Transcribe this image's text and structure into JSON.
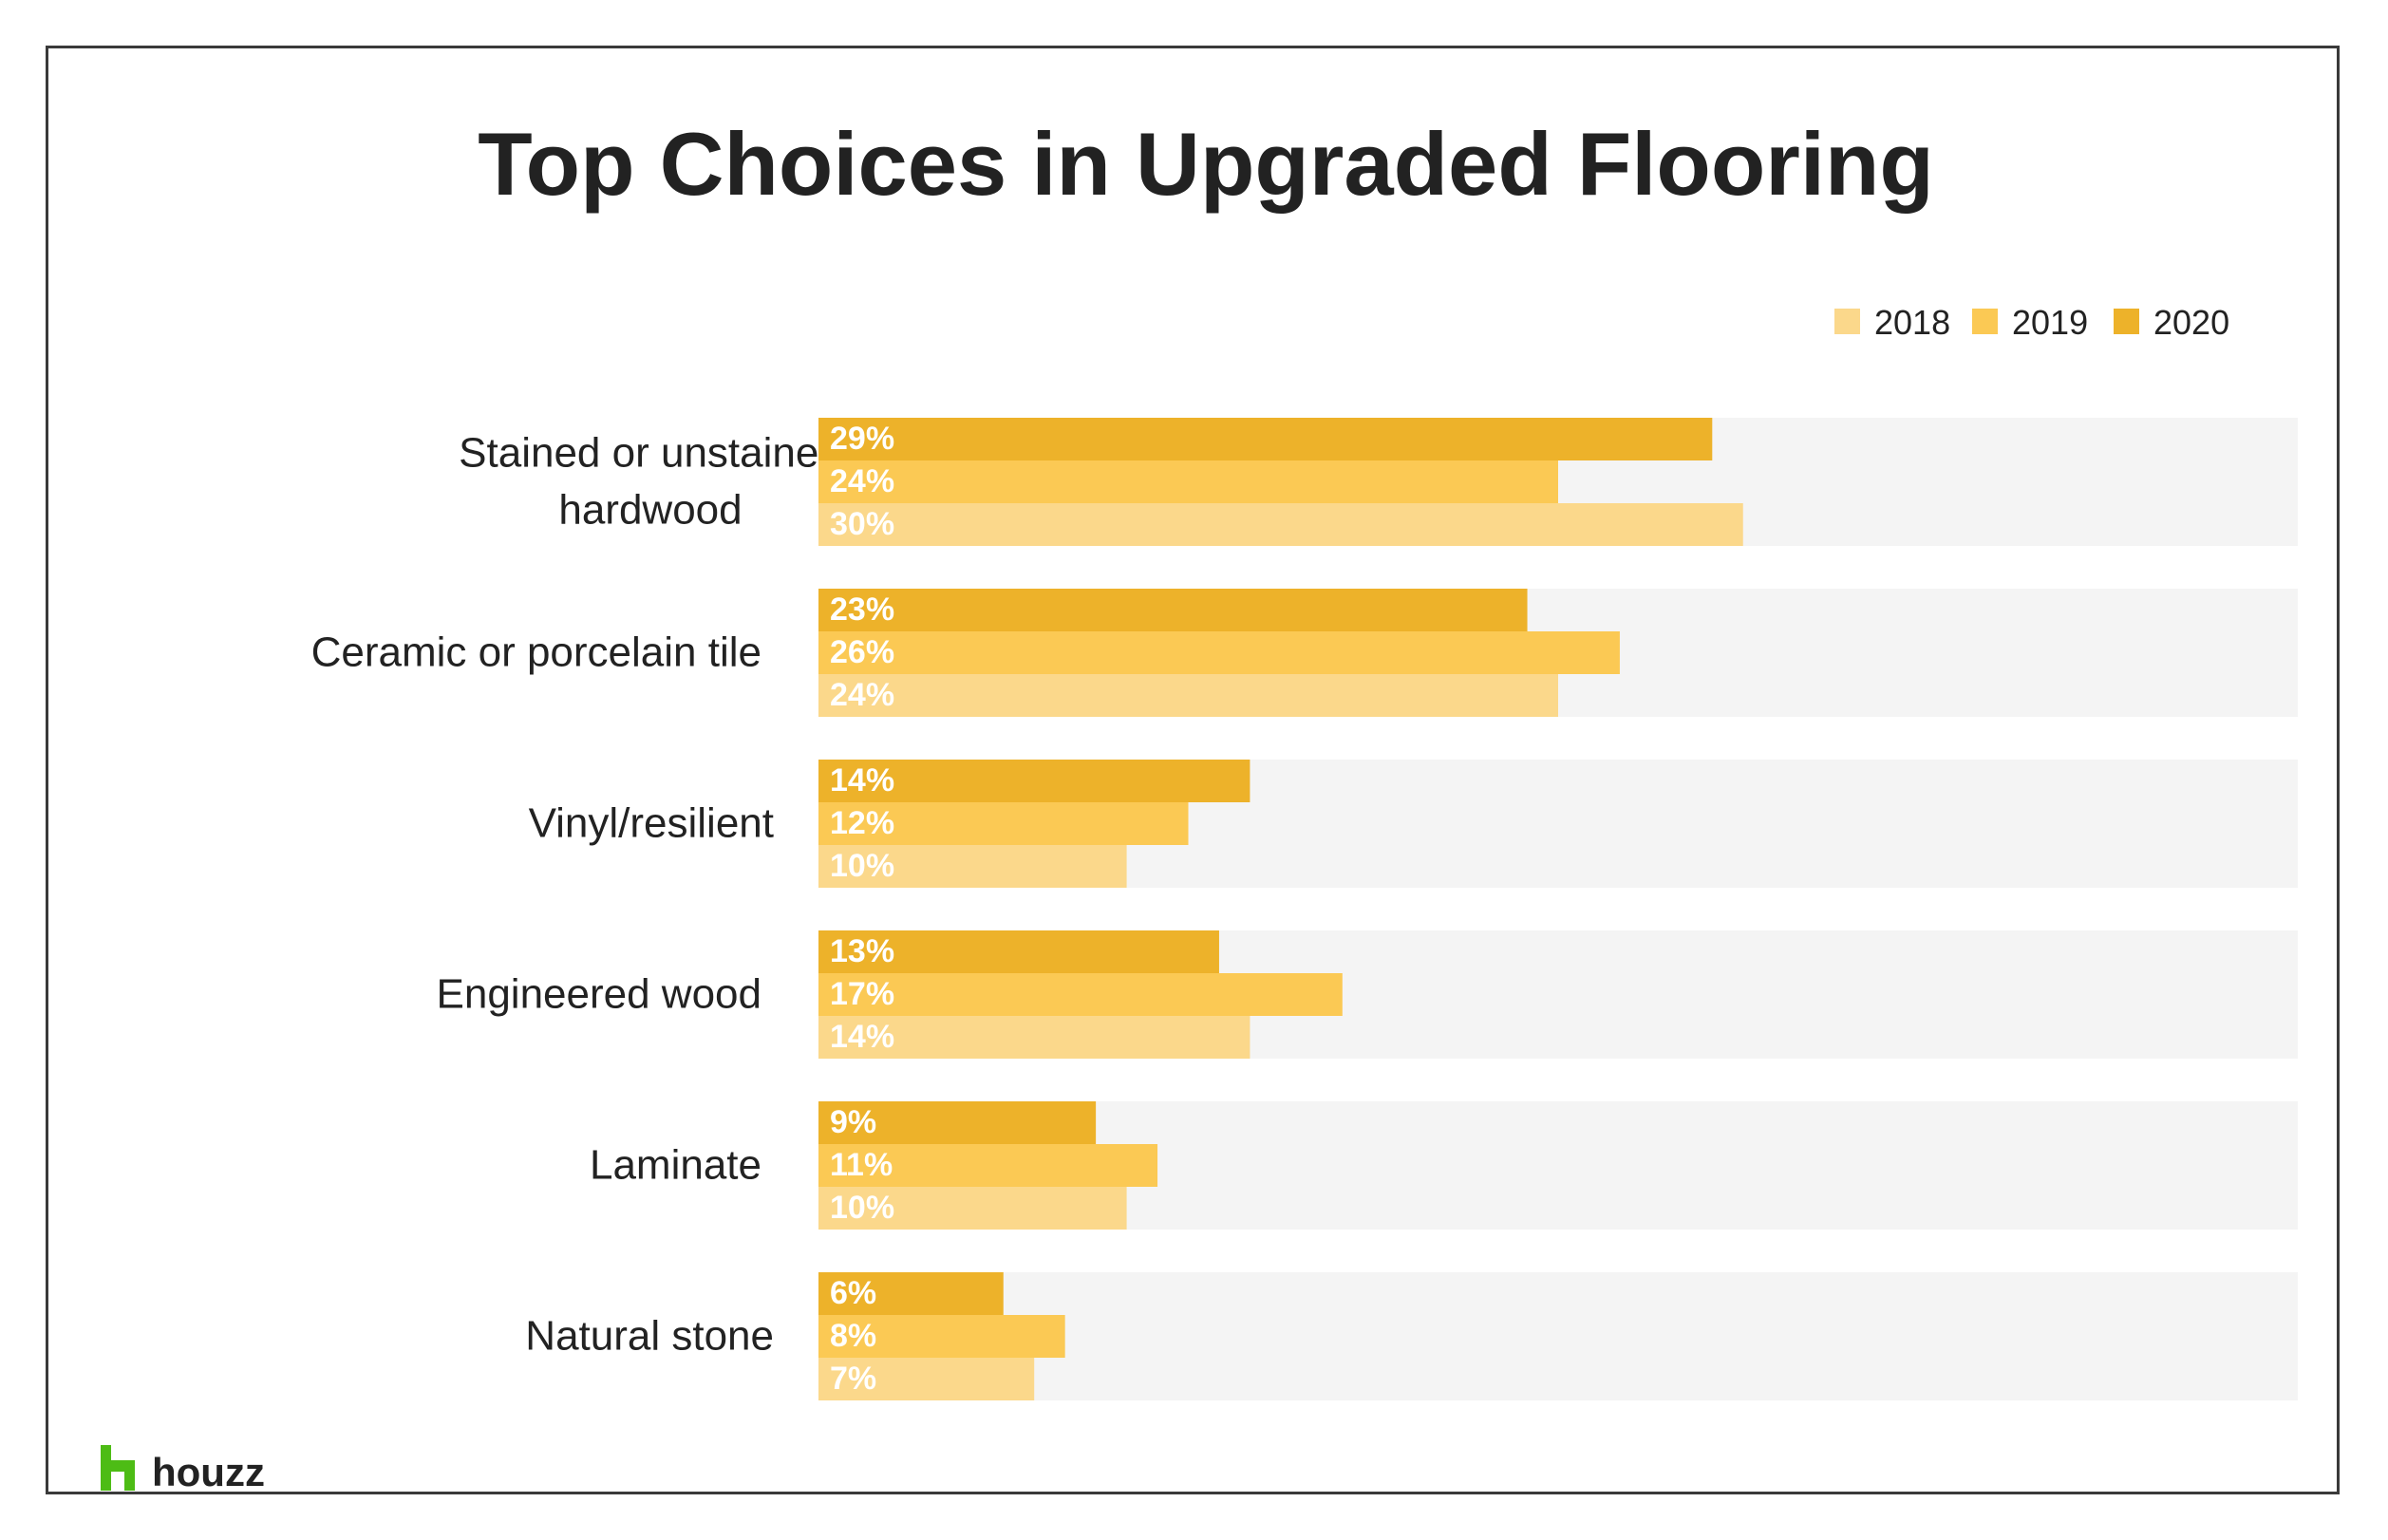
{
  "chart_data": {
    "type": "bar",
    "orientation": "horizontal",
    "title": "Top Choices in Upgraded Flooring",
    "categories": [
      [
        "Stained or unstained",
        "hardwood"
      ],
      [
        "Ceramic or porcelain tile"
      ],
      [
        "Vinyl/resilient"
      ],
      [
        "Engineered wood"
      ],
      [
        "Laminate"
      ],
      [
        "Natural stone"
      ]
    ],
    "series": [
      {
        "name": "2020",
        "color": "#EDB22A",
        "values": [
          29,
          23,
          14,
          13,
          9,
          6
        ],
        "labels": [
          "29%",
          "23%",
          "14%",
          "13%",
          "9%",
          "6%"
        ]
      },
      {
        "name": "2019",
        "color": "#FBC954",
        "values": [
          24,
          26,
          12,
          17,
          11,
          8
        ],
        "labels": [
          "24%",
          "26%",
          "12%",
          "17%",
          "11%",
          "8%"
        ]
      },
      {
        "name": "2018",
        "color": "#FBD88B",
        "values": [
          30,
          24,
          10,
          14,
          10,
          7
        ],
        "labels": [
          "30%",
          "24%",
          "10%",
          "14%",
          "10%",
          "7%"
        ]
      }
    ],
    "xlim": [
      0,
      48
    ],
    "legend": {
      "placement": "top-right",
      "entries": [
        {
          "name": "2018",
          "color": "#FBD88B"
        },
        {
          "name": "2019",
          "color": "#FBC954"
        },
        {
          "name": "2020",
          "color": "#EDB22A"
        }
      ]
    },
    "track_color": "#F4F4F4",
    "grid": false
  },
  "brand": {
    "logo_text": "houzz",
    "logo_color": "#4DBC15",
    "logo_icon": "houzz-house-icon"
  }
}
